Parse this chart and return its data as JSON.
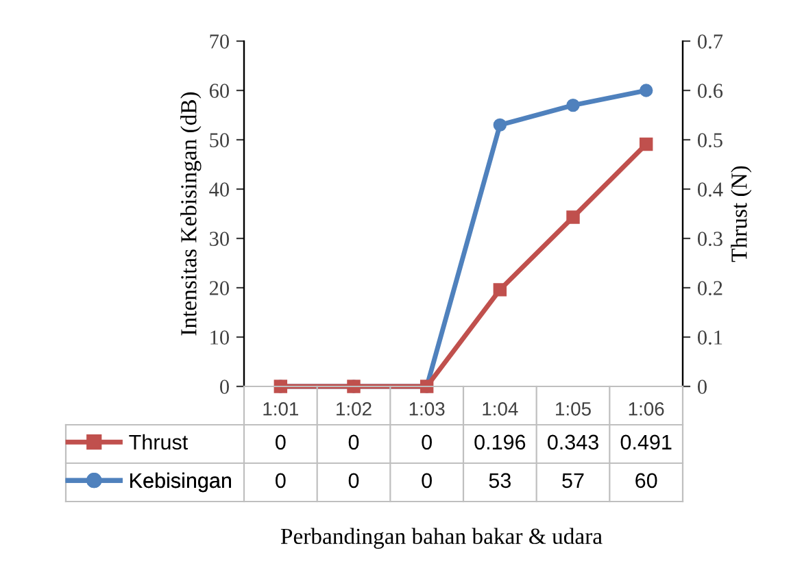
{
  "chart_data": {
    "type": "line",
    "annotations": [
      "Perbandingan bahan bakar & udara"
    ],
    "ylabel": "Intensitas Kebisingan (dB)",
    "y2label": "Thrust (N)",
    "categories": [
      "1:01",
      "1:02",
      "1:03",
      "1:04",
      "1:05",
      "1:06"
    ],
    "series": [
      {
        "name": "Thrust",
        "color": "#c0504d",
        "marker": "square",
        "axis": "y2",
        "values": [
          0,
          0,
          0,
          0.196,
          0.343,
          0.491
        ]
      },
      {
        "name": "Kebisingan",
        "color": "#4f81bd",
        "marker": "circle",
        "axis": "y",
        "values": [
          0,
          0,
          0,
          53,
          57,
          60
        ]
      }
    ],
    "ylim": [
      0,
      70
    ],
    "yticks": [
      0,
      10,
      20,
      30,
      40,
      50,
      60,
      70
    ],
    "y2lim": [
      0,
      0.7
    ],
    "y2ticks": [
      0,
      0.1,
      0.2,
      0.3,
      0.4,
      0.5,
      0.6,
      0.7
    ],
    "grid": false,
    "legend": "bottom",
    "data_labels": true
  }
}
